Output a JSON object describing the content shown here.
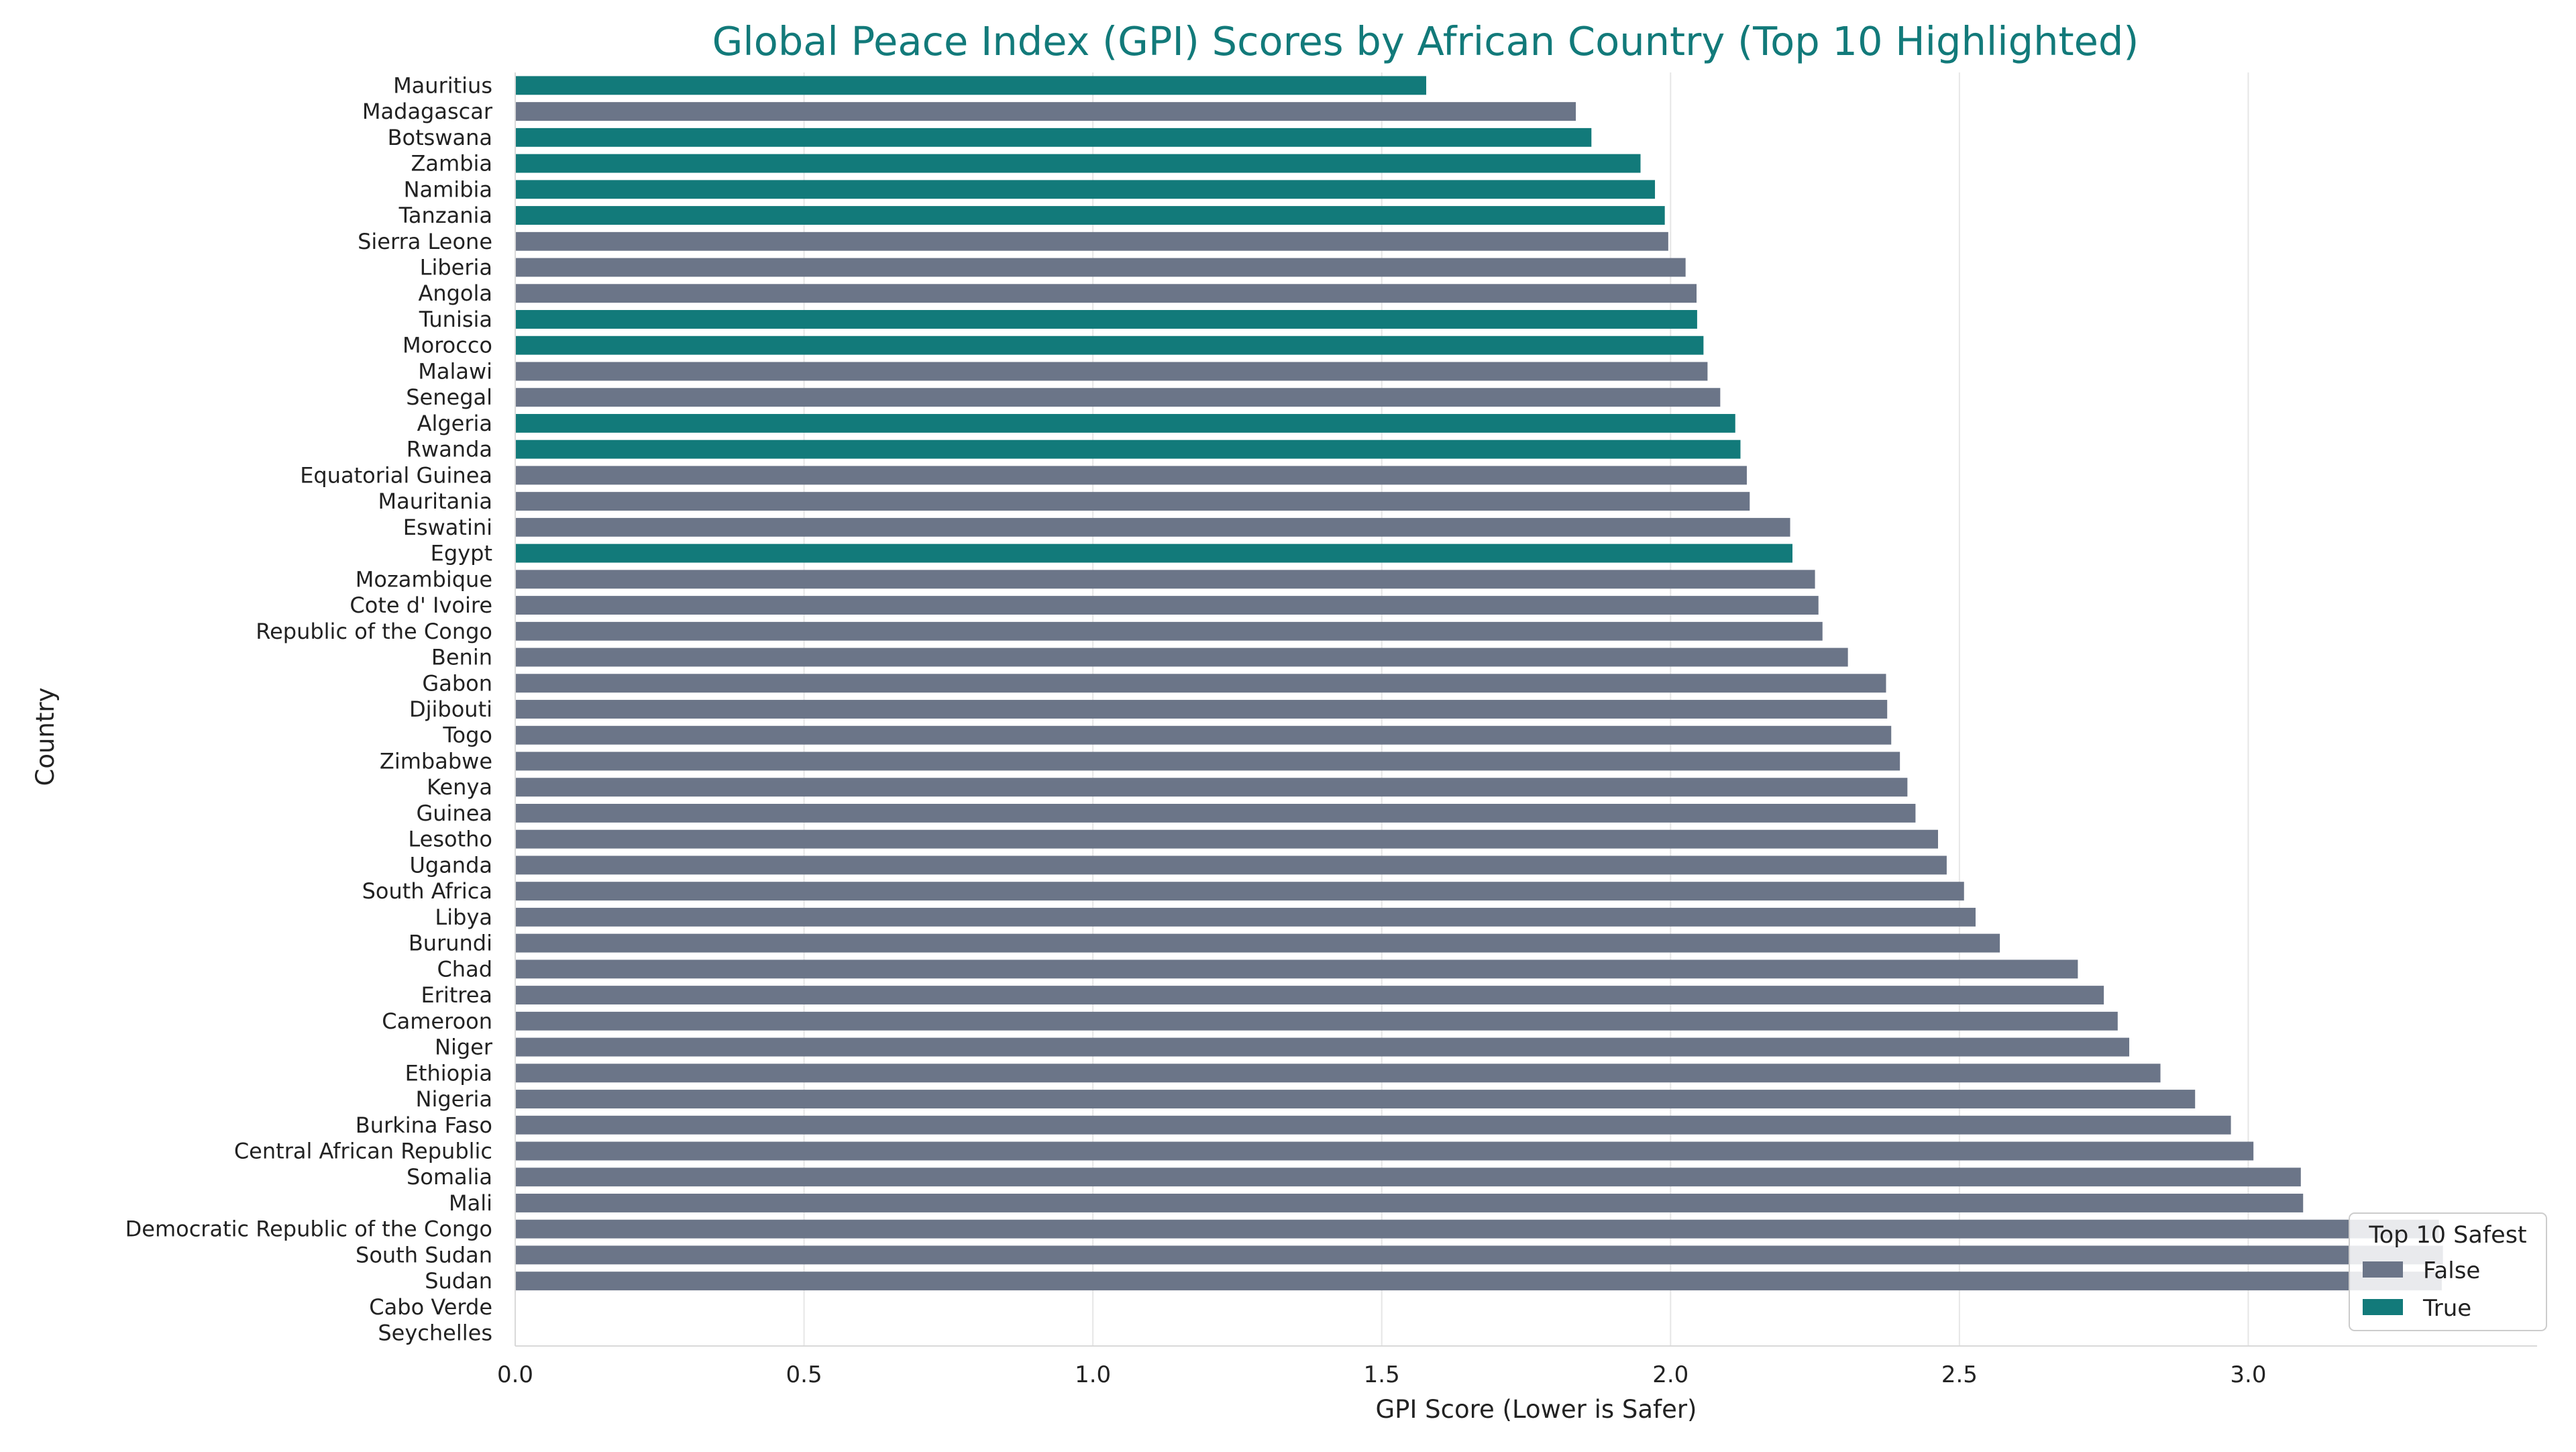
{
  "chart_data": {
    "type": "bar",
    "orientation": "horizontal",
    "title": "Global Peace Index (GPI) Scores by African Country (Top 10 Highlighted)",
    "xlabel": "GPI Score (Lower is Safer)",
    "ylabel": "Country",
    "xlim": [
      0,
      3.5
    ],
    "xticks": [
      0.0,
      0.5,
      1.0,
      1.5,
      2.0,
      2.5,
      3.0
    ],
    "xtick_labels": [
      "0.0",
      "0.5",
      "1.0",
      "1.5",
      "2.0",
      "2.5",
      "3.0"
    ],
    "grid": "vertical",
    "legend": {
      "title": "Top 10 Safest",
      "placement": "bottom-right",
      "entries": [
        {
          "label": "False",
          "color": "#6b7588"
        },
        {
          "label": "True",
          "color": "#127a7a"
        }
      ]
    },
    "colors": {
      "highlight": "#127a7a",
      "other": "#6b7588",
      "title": "#127a7a"
    },
    "categories": [
      "Mauritius",
      "Madagascar",
      "Botswana",
      "Zambia",
      "Namibia",
      "Tanzania",
      "Sierra Leone",
      "Liberia",
      "Angola",
      "Tunisia",
      "Morocco",
      "Malawi",
      "Senegal",
      "Algeria",
      "Rwanda",
      "Equatorial Guinea",
      "Mauritania",
      "Eswatini",
      "Egypt",
      "Mozambique",
      "Cote d' Ivoire",
      "Republic of the Congo",
      "Benin",
      "Gabon",
      "Djibouti",
      "Togo",
      "Zimbabwe",
      "Kenya",
      "Guinea",
      "Lesotho",
      "Uganda",
      "South Africa",
      "Libya",
      "Burundi",
      "Chad",
      "Eritrea",
      "Cameroon",
      "Niger",
      "Ethiopia",
      "Nigeria",
      "Burkina Faso",
      "Central African Republic",
      "Somalia",
      "Mali",
      "Democratic Republic of the Congo",
      "South Sudan",
      "Sudan",
      "Cabo Verde",
      "Seychelles"
    ],
    "values": [
      1.577,
      1.836,
      1.863,
      1.948,
      1.973,
      1.99,
      1.996,
      2.026,
      2.045,
      2.046,
      2.057,
      2.064,
      2.086,
      2.112,
      2.121,
      2.132,
      2.137,
      2.207,
      2.211,
      2.25,
      2.256,
      2.263,
      2.307,
      2.373,
      2.375,
      2.382,
      2.397,
      2.41,
      2.424,
      2.463,
      2.478,
      2.508,
      2.528,
      2.57,
      2.705,
      2.75,
      2.774,
      2.794,
      2.848,
      2.908,
      2.97,
      3.009,
      3.091,
      3.095,
      3.33,
      3.337,
      3.335,
      null,
      null
    ],
    "top10": [
      true,
      false,
      true,
      true,
      true,
      true,
      false,
      false,
      false,
      true,
      true,
      false,
      false,
      true,
      true,
      false,
      false,
      false,
      true,
      false,
      false,
      false,
      false,
      false,
      false,
      false,
      false,
      false,
      false,
      false,
      false,
      false,
      false,
      false,
      false,
      false,
      false,
      false,
      false,
      false,
      false,
      false,
      false,
      false,
      false,
      false,
      false,
      false,
      false
    ]
  }
}
